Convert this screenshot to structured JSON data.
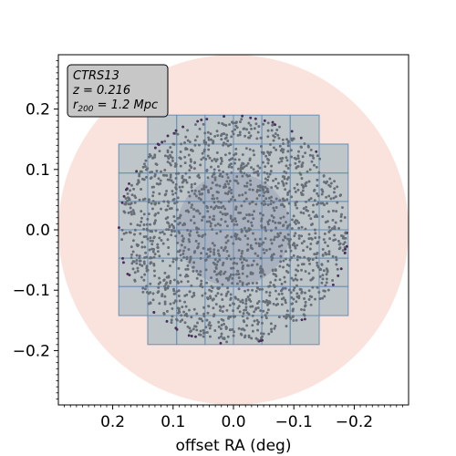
{
  "chart_data": {
    "type": "scatter",
    "title": "",
    "xlabel": "offset RA (deg)",
    "ylabel": "",
    "xlim": [
      0.29,
      -0.29
    ],
    "ylim": [
      -0.29,
      0.29
    ],
    "x_ticks": [
      0.2,
      0.1,
      0.0,
      -0.1,
      -0.2
    ],
    "x_tick_labels": [
      "0.2",
      "0.1",
      "0.0",
      "−0.1",
      "−0.2"
    ],
    "y_ticks": [
      0.2,
      0.1,
      0.0,
      -0.1,
      -0.2
    ],
    "y_tick_labels": [
      "0.2",
      "0.1",
      "0.0",
      "−0.1",
      "−0.2"
    ],
    "grid": false,
    "annotation": {
      "cluster": "CTRS13",
      "redshift": "z = 0.216",
      "radius_prefix": "r",
      "radius_subscript": "200",
      "radius_suffix": " = 1.2 Mpc",
      "placement": "top-left"
    },
    "circles": [
      {
        "name": "outer radius",
        "radius_deg": 0.29,
        "color": "#fbe3dd"
      },
      {
        "name": "inner radius",
        "radius_deg": 0.094,
        "color": "#a486ae"
      }
    ],
    "coverage_region": {
      "color": "#a9bcc3",
      "edge_color": "#6a8fb5",
      "x_edges": [
        0.19,
        0.142,
        0.094,
        0.047,
        0.0,
        -0.047,
        -0.094,
        -0.142,
        -0.19
      ],
      "y_edges": [
        0.19,
        0.142,
        0.094,
        0.047,
        0.0,
        -0.047,
        -0.094,
        -0.142,
        -0.19
      ],
      "row_extents": [
        [
          0.142,
          -0.142
        ],
        [
          0.19,
          -0.19
        ],
        [
          0.19,
          -0.19
        ],
        [
          0.19,
          -0.19
        ],
        [
          0.19,
          -0.19
        ],
        [
          0.19,
          -0.19
        ],
        [
          0.19,
          -0.19
        ],
        [
          0.142,
          -0.142
        ]
      ]
    },
    "members": {
      "color": "#666e78",
      "edge_color": "#4a2f5a",
      "count": 1800,
      "distribution": "uniform within r = 0.19 deg",
      "max_radius_deg": 0.19
    }
  }
}
